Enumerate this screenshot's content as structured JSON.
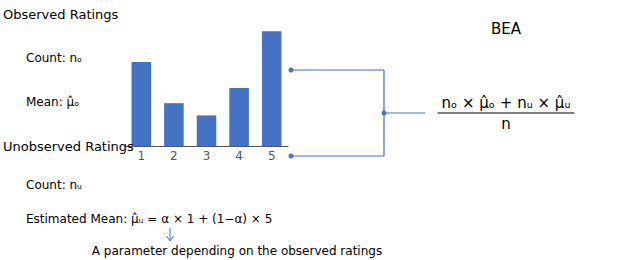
{
  "chart_data": {
    "type": "bar",
    "categories": [
      "1",
      "2",
      "3",
      "4",
      "5"
    ],
    "values": [
      0.55,
      0.28,
      0.2,
      0.38,
      0.75
    ],
    "color": "#4472C4",
    "ylim": [
      0,
      0.85
    ],
    "tick_labels": "x",
    "grid": false,
    "annotations": [
      "Observed Ratings",
      "Count: nₒ",
      "Mean: μ̂ₒ",
      "Unobserved Ratings",
      "Count: nᵤ",
      "Estimated Mean: μ̂ᵤ = α × 1 + (1−α) × 5",
      "A parameter depending on the observed ratings",
      "BEA",
      "nₒ × μ̂ₒ + nᵤ × μ̂ᵤ",
      "n"
    ]
  }
}
